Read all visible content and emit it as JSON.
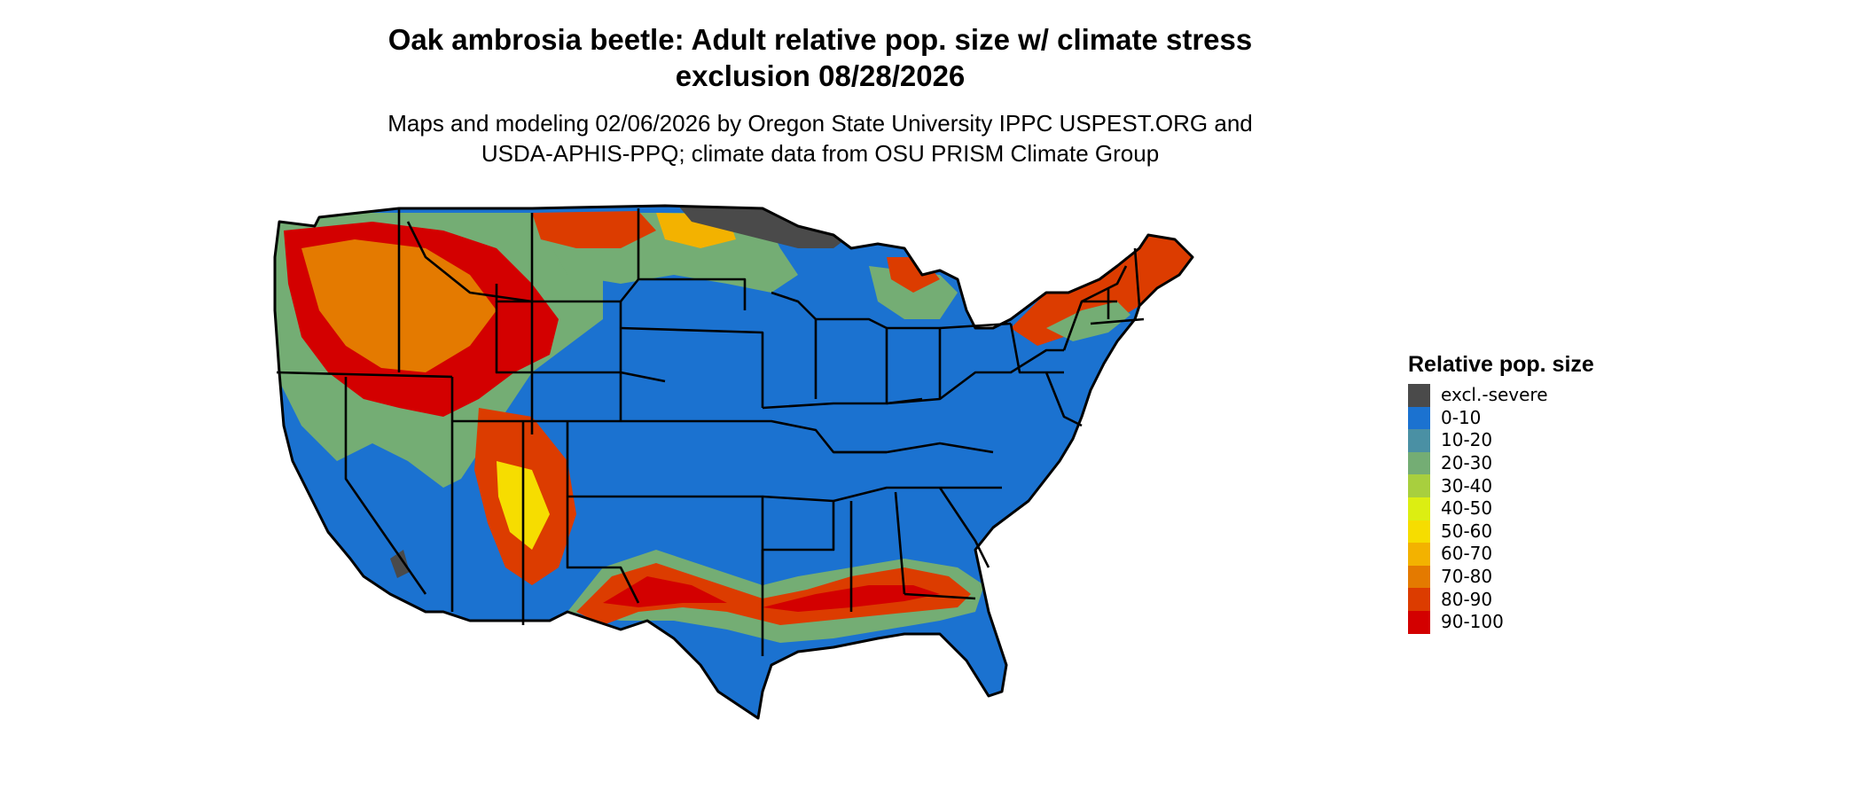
{
  "title_line1": "Oak ambrosia beetle: Adult relative pop. size w/ climate stress",
  "title_line2": "exclusion 08/28/2026",
  "subtitle_line1": "Maps and modeling 02/06/2026 by Oregon State University IPPC USPEST.ORG and",
  "subtitle_line2": "USDA-APHIS-PPQ; climate data from OSU PRISM Climate Group",
  "legend": {
    "title": "Relative pop. size",
    "items": [
      {
        "label": "excl.-severe",
        "color": "#4a4a4a"
      },
      {
        "label": "0-10",
        "color": "#1b72d0"
      },
      {
        "label": "10-20",
        "color": "#4a90a4"
      },
      {
        "label": "20-30",
        "color": "#74ad74"
      },
      {
        "label": "30-40",
        "color": "#a8cf3e"
      },
      {
        "label": "40-50",
        "color": "#dcee12"
      },
      {
        "label": "50-60",
        "color": "#f6dd00"
      },
      {
        "label": "60-70",
        "color": "#f3b200"
      },
      {
        "label": "70-80",
        "color": "#e47a00"
      },
      {
        "label": "80-90",
        "color": "#dc3c00"
      },
      {
        "label": "90-100",
        "color": "#d30000"
      }
    ]
  }
}
